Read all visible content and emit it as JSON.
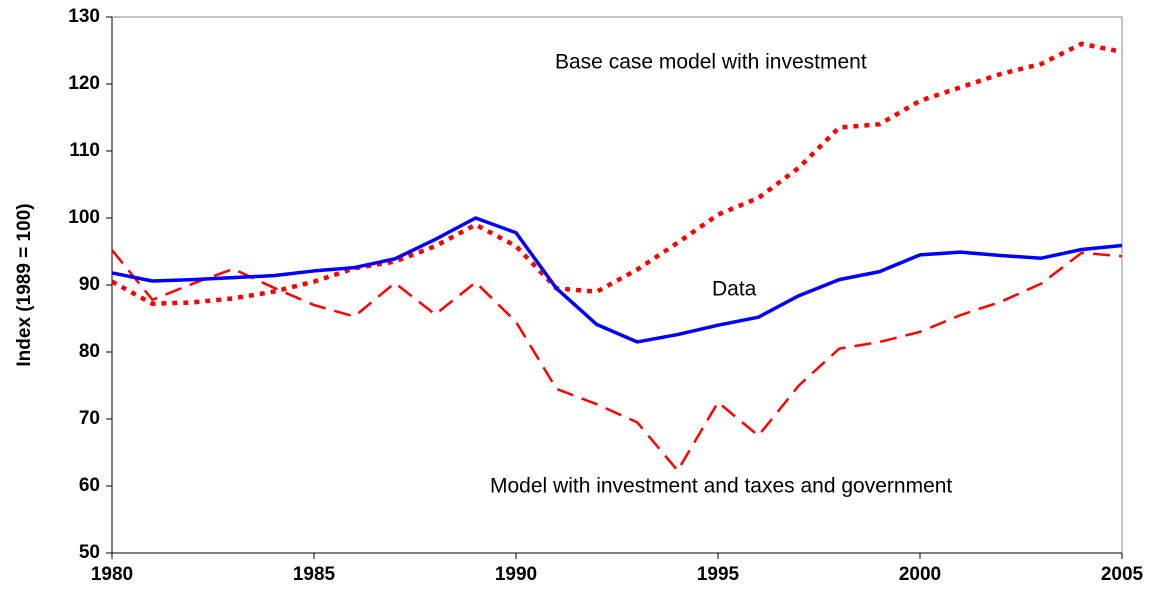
{
  "chart_data": {
    "type": "line",
    "y_label": "Index (1989 = 100)",
    "x": [
      1980,
      1981,
      1982,
      1983,
      1984,
      1985,
      1986,
      1987,
      1988,
      1989,
      1990,
      1991,
      1992,
      1993,
      1994,
      1995,
      1996,
      1997,
      1998,
      1999,
      2000,
      2001,
      2002,
      2003,
      2004,
      2005
    ],
    "series": [
      {
        "name": "Data",
        "color": "#0000ff",
        "style": "solid",
        "values": [
          91.8,
          90.6,
          90.8,
          91.1,
          91.4,
          92.1,
          92.6,
          93.9,
          96.8,
          100,
          97.8,
          89.5,
          84.1,
          81.5,
          82.6,
          84,
          85.2,
          88.4,
          90.8,
          92,
          94.5,
          94.9,
          94.4,
          94,
          95.3,
          95.9
        ]
      },
      {
        "name": "Base case model with investment",
        "color": "#ff0000",
        "style": "dotted",
        "values": [
          90.5,
          87.2,
          87.4,
          88,
          89,
          90.5,
          92.5,
          93.5,
          95.8,
          99,
          95.8,
          89.5,
          89,
          92.3,
          96.3,
          100.5,
          103,
          107.5,
          113.5,
          114,
          117.5,
          119.5,
          121.5,
          123,
          126,
          124.8
        ]
      },
      {
        "name": "Model with investment and taxes and government",
        "color": "#ff0000",
        "style": "dashed",
        "values": [
          95.2,
          87.8,
          90.2,
          92.4,
          89.6,
          87,
          85.3,
          90.3,
          85.6,
          90.4,
          84.5,
          74.5,
          72.2,
          69.5,
          62.3,
          72.5,
          67.5,
          75,
          80.5,
          81.5,
          83,
          85.5,
          87.5,
          90.2,
          94.8,
          94.3
        ]
      }
    ],
    "xlim": [
      1980,
      2005
    ],
    "xticks": [
      1980,
      1985,
      1990,
      1995,
      2000,
      2005
    ],
    "ylim": [
      50,
      130
    ],
    "yticks": [
      50,
      60,
      70,
      80,
      90,
      100,
      110,
      120,
      130
    ]
  }
}
